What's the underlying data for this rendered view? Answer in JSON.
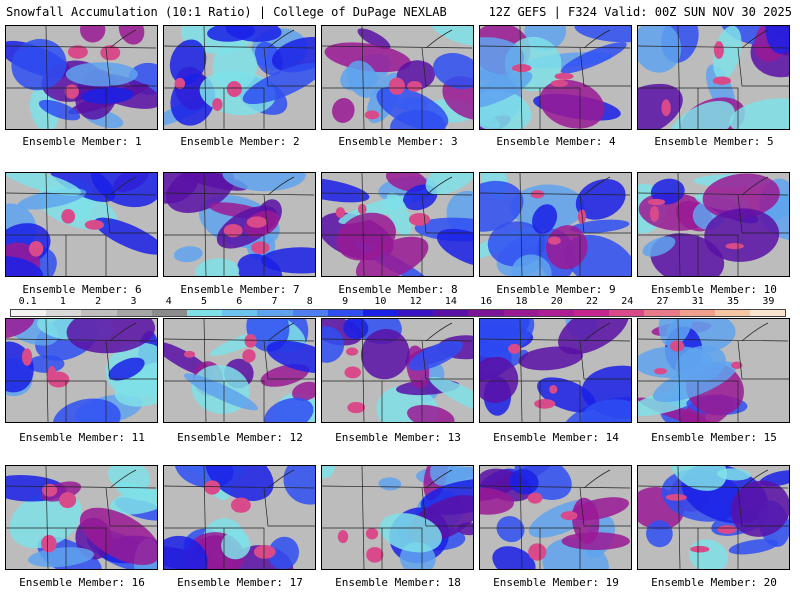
{
  "header": {
    "left": "Snowfall Accumulation (10:1 Ratio) | College of DuPage NEXLAB",
    "right": "12Z GEFS | F324 Valid: 00Z SUN NOV 30 2025"
  },
  "caption_prefix": "Ensemble Member: ",
  "members": [
    "1",
    "2",
    "3",
    "4",
    "5",
    "6",
    "7",
    "8",
    "9",
    "10",
    "11",
    "12",
    "13",
    "14",
    "15",
    "16",
    "17",
    "18",
    "19",
    "20"
  ],
  "scale": {
    "labels": [
      "0.1",
      "1",
      "2",
      "3",
      "4",
      "5",
      "6",
      "7",
      "8",
      "9",
      "10",
      "12",
      "14",
      "16",
      "18",
      "20",
      "22",
      "24",
      "27",
      "31",
      "35",
      "39"
    ],
    "colors": [
      "#f2f2f2",
      "#d9d9d9",
      "#bfbfbf",
      "#a6a6a6",
      "#8c8c8c",
      "#7fe0e8",
      "#6cc4ee",
      "#5fa3ef",
      "#4f7ff0",
      "#2f4ff2",
      "#1a20e6",
      "#3a14c4",
      "#5a10a6",
      "#7c1496",
      "#9a1a94",
      "#b01e96",
      "#c42890",
      "#d84a8a",
      "#e87a8a",
      "#f0a08c",
      "#f6c6a4",
      "#fbe4cf"
    ]
  }
}
